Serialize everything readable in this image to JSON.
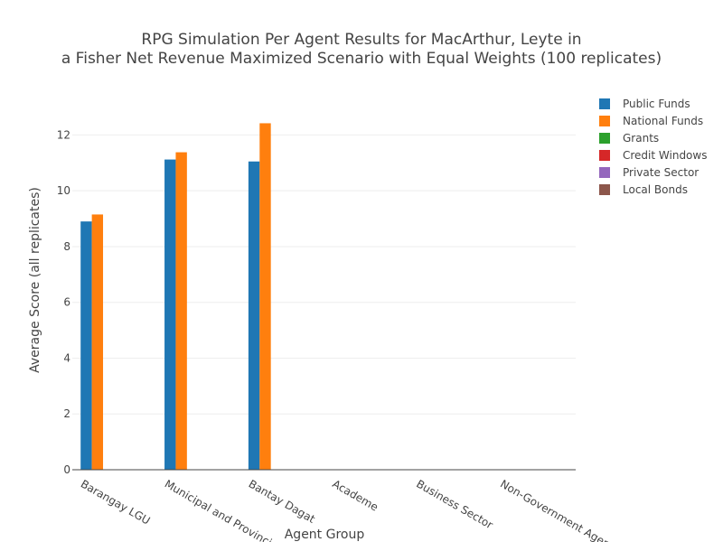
{
  "chart_data": {
    "type": "bar",
    "title_lines": [
      "RPG Simulation Per Agent Results for MacArthur, Leyte in",
      "a Fisher Net Revenue Maximized Scenario with Equal Weights (100 replicates)"
    ],
    "xlabel": "Agent Group",
    "ylabel": "Average Score (all replicates)",
    "ylim": [
      0,
      13.6
    ],
    "yticks": [
      0,
      2,
      4,
      6,
      8,
      10,
      12
    ],
    "categories": [
      "Barangay LGU",
      "Municipal and Provincial LGU",
      "Bantay Dagat",
      "Academe",
      "Business Sector",
      "Non-Government Agencies"
    ],
    "series": [
      {
        "name": "Public Funds",
        "color": "#1f77b4",
        "values": [
          8.9,
          11.12,
          11.05,
          0,
          0,
          0
        ]
      },
      {
        "name": "National Funds",
        "color": "#ff7f0e",
        "values": [
          9.15,
          11.38,
          12.42,
          0,
          0,
          0
        ]
      },
      {
        "name": "Grants",
        "color": "#2ca02c",
        "values": [
          0,
          0,
          0,
          0,
          0,
          0
        ]
      },
      {
        "name": "Credit Windows",
        "color": "#d62728",
        "values": [
          0,
          0,
          0,
          0,
          0,
          0
        ]
      },
      {
        "name": "Private Sector",
        "color": "#9467bd",
        "values": [
          0,
          0,
          0,
          0,
          0,
          0
        ]
      },
      {
        "name": "Local Bonds",
        "color": "#8c564b",
        "values": [
          0,
          0,
          0,
          0,
          0,
          0
        ]
      }
    ],
    "grid": true,
    "legend_position": "top-right"
  }
}
